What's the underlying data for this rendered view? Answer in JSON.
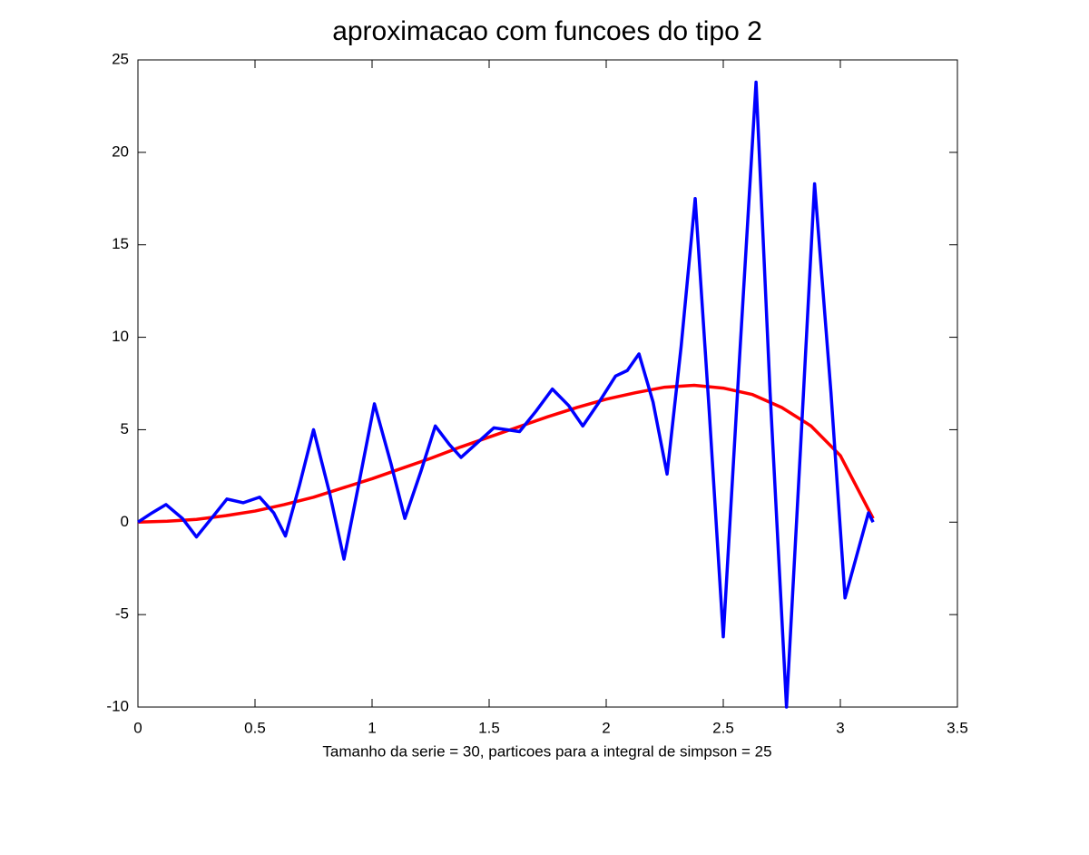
{
  "chart_data": {
    "type": "line",
    "title": "aproximacao com funcoes do tipo 2",
    "x_label": "Tamanho da serie = 30, particoes para a integral de simpson = 25",
    "xlim": [
      0,
      3.5
    ],
    "ylim": [
      -10,
      25
    ],
    "xticks": [
      0,
      0.5,
      1,
      1.5,
      2,
      2.5,
      3,
      3.5
    ],
    "yticks": [
      -10,
      -5,
      0,
      5,
      10,
      15,
      20,
      25
    ],
    "series": [
      {
        "color": "#ff0000",
        "x": [
          0,
          0.125,
          0.25,
          0.375,
          0.5,
          0.625,
          0.75,
          0.875,
          1,
          1.125,
          1.25,
          1.375,
          1.5,
          1.625,
          1.75,
          1.875,
          2,
          2.125,
          2.25,
          2.375,
          2.5,
          2.625,
          2.75,
          2.875,
          3,
          3.14
        ],
        "values": [
          0,
          0.05,
          0.15,
          0.35,
          0.6,
          0.95,
          1.35,
          1.85,
          2.35,
          2.9,
          3.45,
          4.05,
          4.6,
          5.15,
          5.7,
          6.2,
          6.65,
          7.0,
          7.3,
          7.4,
          7.25,
          6.9,
          6.2,
          5.2,
          3.6,
          0.2
        ]
      },
      {
        "color": "#0000ff",
        "x": [
          0,
          0.06,
          0.12,
          0.19,
          0.25,
          0.32,
          0.38,
          0.45,
          0.52,
          0.58,
          0.63,
          0.69,
          0.75,
          0.82,
          0.88,
          0.95,
          1.01,
          1.08,
          1.14,
          1.21,
          1.27,
          1.33,
          1.38,
          1.45,
          1.52,
          1.63,
          1.7,
          1.77,
          1.84,
          1.9,
          1.97,
          2.04,
          2.09,
          2.14,
          2.2,
          2.26,
          2.32,
          2.38,
          2.44,
          2.5,
          2.57,
          2.64,
          2.7,
          2.77,
          2.83,
          2.89,
          2.96,
          3.02,
          3.07,
          3.12,
          3.14
        ],
        "values": [
          0,
          0.5,
          0.95,
          0.2,
          -0.8,
          0.3,
          1.25,
          1.05,
          1.35,
          0.5,
          -0.75,
          2.0,
          5.0,
          1.5,
          -2.0,
          2.5,
          6.4,
          3.2,
          0.2,
          2.8,
          5.2,
          4.2,
          3.5,
          4.3,
          5.1,
          4.9,
          6.0,
          7.2,
          6.3,
          5.2,
          6.5,
          7.9,
          8.2,
          9.1,
          6.5,
          2.6,
          9.5,
          17.5,
          6.0,
          -6.2,
          9.0,
          23.8,
          7.0,
          -10,
          4.0,
          18.3,
          7.0,
          -4.1,
          -1.8,
          0.5,
          0
        ]
      }
    ]
  }
}
